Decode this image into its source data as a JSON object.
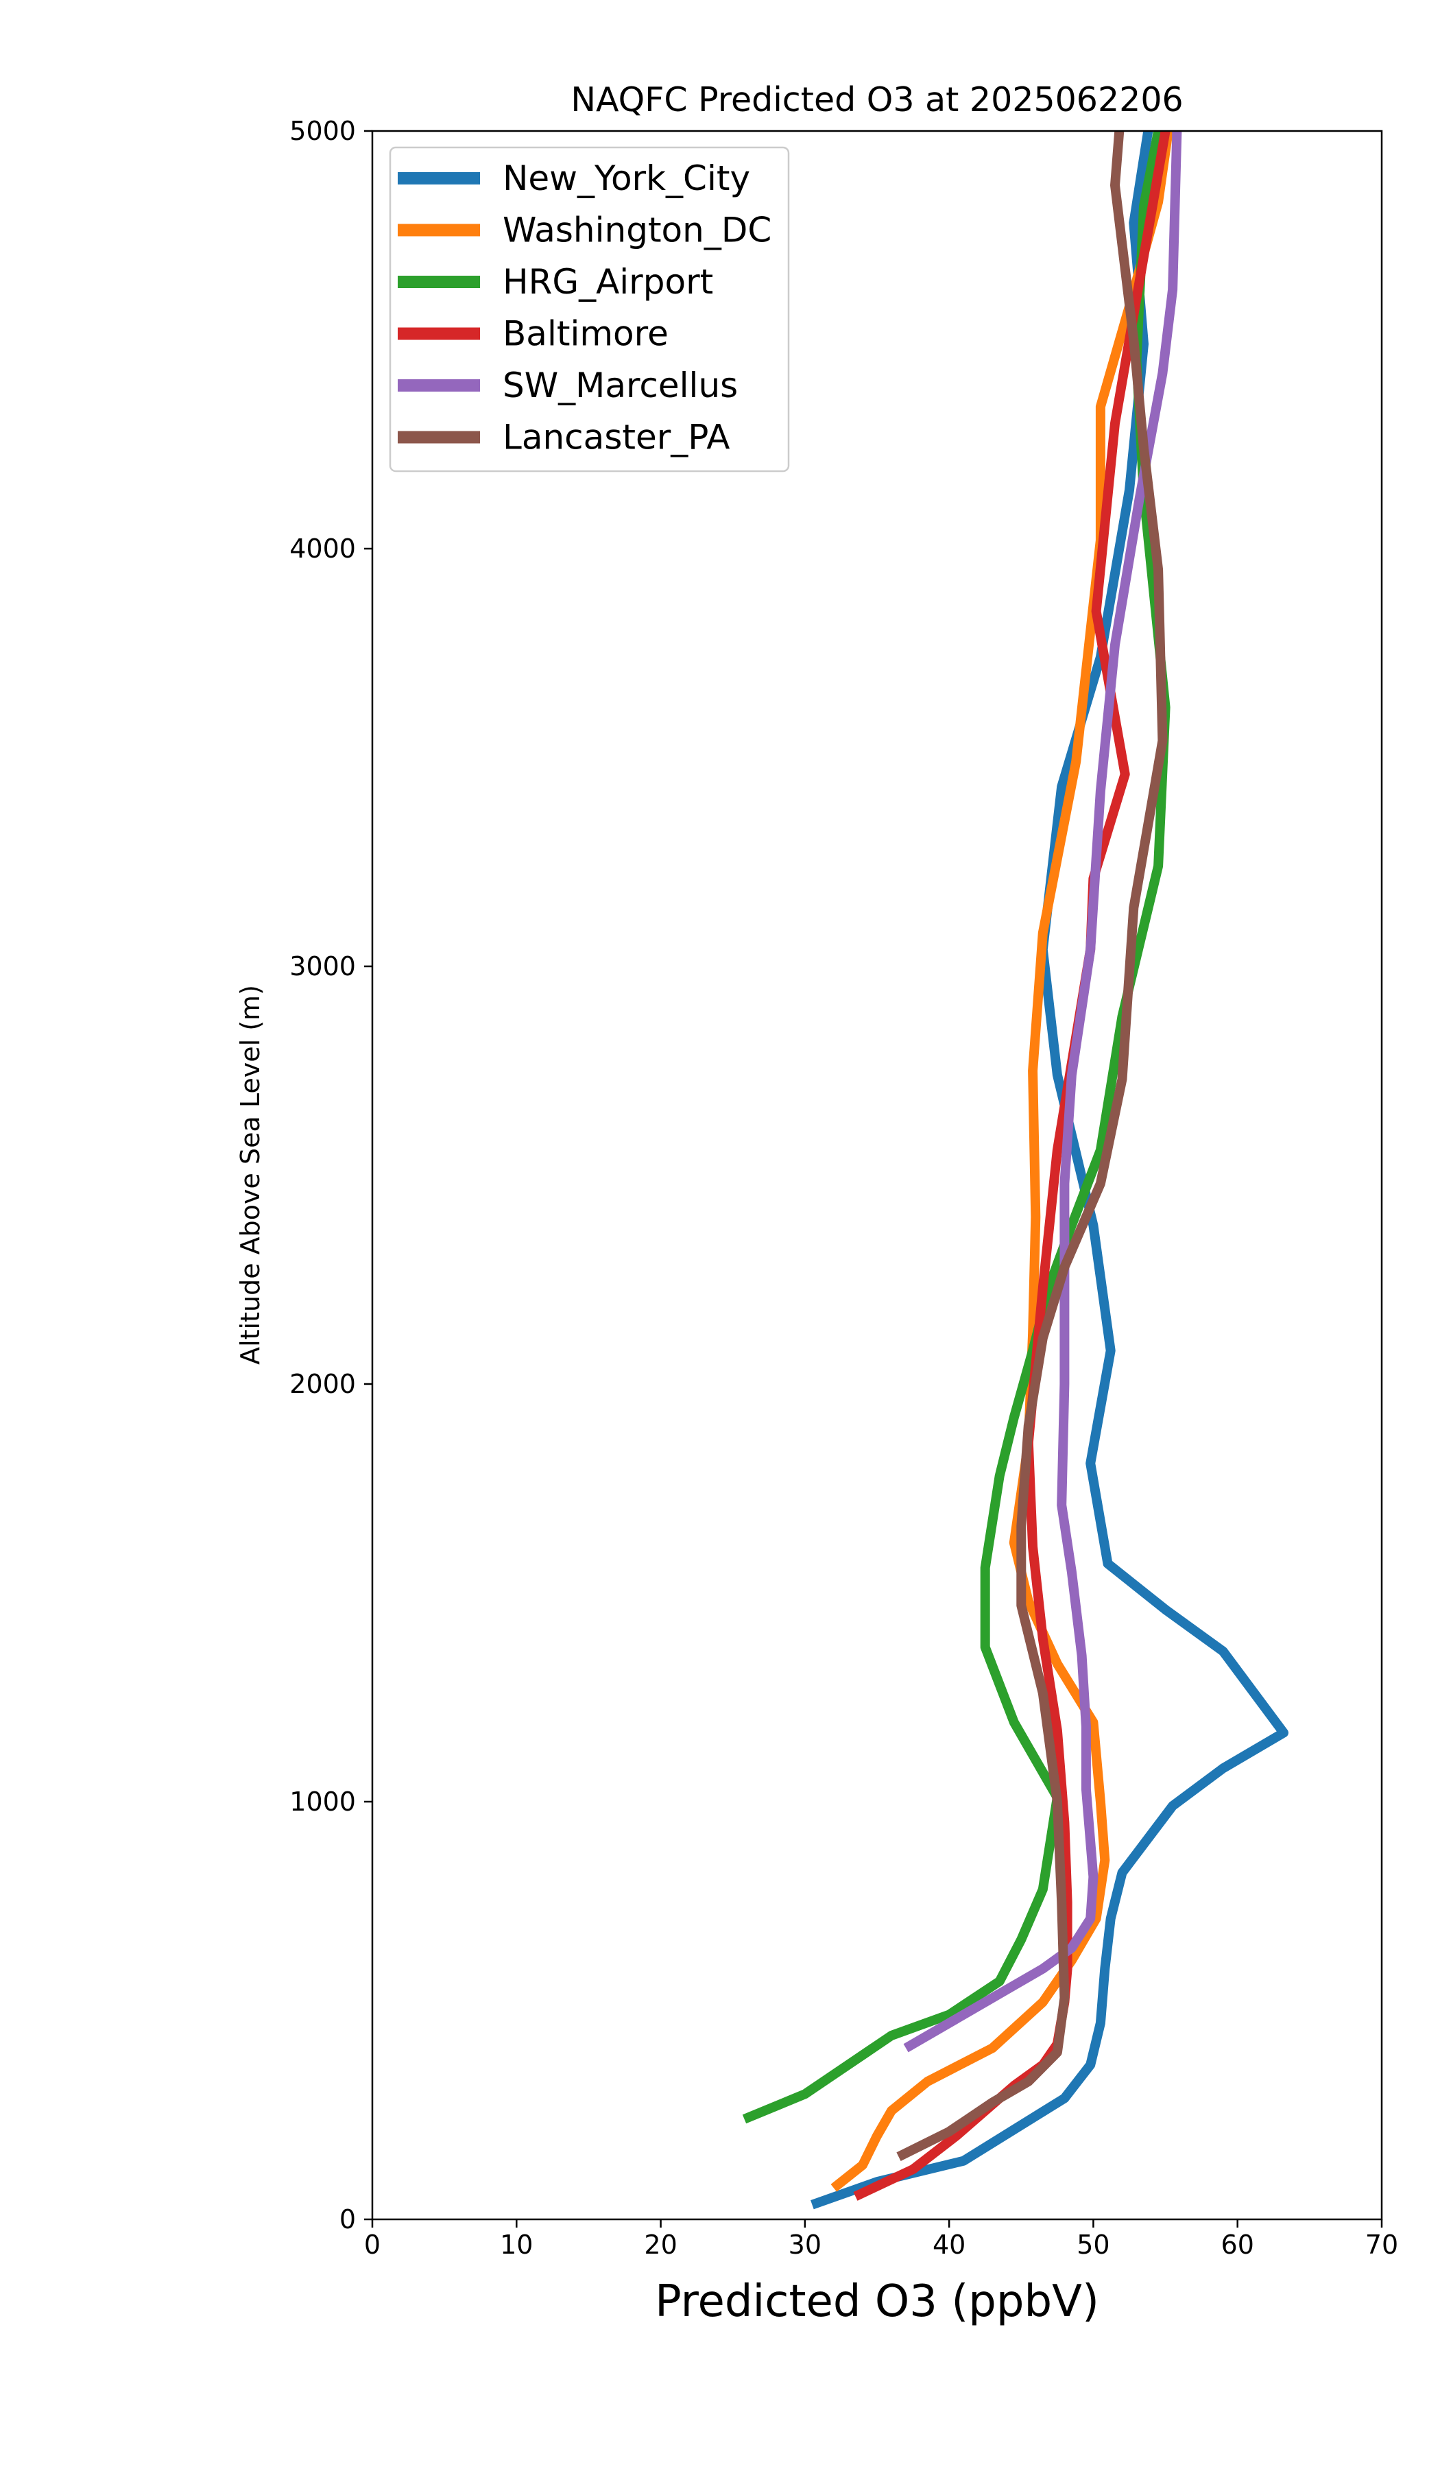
{
  "chart_data": {
    "type": "line",
    "title": "NAQFC Predicted O3 at 2025062206",
    "xlabel": "Predicted O3 (ppbV)",
    "ylabel": "Altitude Above Sea Level (m)",
    "xlim": [
      0,
      70
    ],
    "ylim": [
      0,
      5000
    ],
    "xticks": [
      0,
      10,
      20,
      30,
      40,
      50,
      60,
      70
    ],
    "yticks": [
      0,
      1000,
      2000,
      3000,
      4000,
      5000
    ],
    "xtick_labels": [
      "0",
      "10",
      "20",
      "30",
      "40",
      "50",
      "60",
      "70"
    ],
    "ytick_labels": [
      "0",
      "1000",
      "2000",
      "3000",
      "4000",
      "5000"
    ],
    "grid": false,
    "legend_position": "top-left",
    "series": [
      {
        "name": "New_York_City",
        "color": "#1f77b4",
        "points": [
          [
            30.5,
            35
          ],
          [
            35,
            90
          ],
          [
            41,
            140
          ],
          [
            48,
            290
          ],
          [
            49.8,
            370
          ],
          [
            50.5,
            470
          ],
          [
            50.8,
            600
          ],
          [
            51.2,
            720
          ],
          [
            52,
            830
          ],
          [
            55.5,
            990
          ],
          [
            59,
            1080
          ],
          [
            63.2,
            1165
          ],
          [
            59,
            1360
          ],
          [
            55,
            1460
          ],
          [
            51,
            1570
          ],
          [
            49.8,
            1810
          ],
          [
            51.2,
            2080
          ],
          [
            50,
            2380
          ],
          [
            47.5,
            2740
          ],
          [
            46.5,
            3040
          ],
          [
            47.8,
            3430
          ],
          [
            50.5,
            3740
          ],
          [
            52.5,
            4140
          ],
          [
            53.5,
            4490
          ],
          [
            52.8,
            4780
          ],
          [
            53.8,
            5000
          ]
        ]
      },
      {
        "name": "Washington_DC",
        "color": "#ff7f0e",
        "points": [
          [
            32,
            75
          ],
          [
            34,
            130
          ],
          [
            35,
            200
          ],
          [
            36,
            260
          ],
          [
            38.5,
            330
          ],
          [
            43,
            410
          ],
          [
            46.5,
            520
          ],
          [
            48.5,
            620
          ],
          [
            50.2,
            720
          ],
          [
            50.8,
            860
          ],
          [
            50.5,
            1000
          ],
          [
            50,
            1190
          ],
          [
            47.5,
            1330
          ],
          [
            45.5,
            1480
          ],
          [
            44.5,
            1620
          ],
          [
            45.5,
            1860
          ],
          [
            45.8,
            2120
          ],
          [
            46,
            2400
          ],
          [
            45.8,
            2750
          ],
          [
            46.5,
            3080
          ],
          [
            48.8,
            3490
          ],
          [
            50.5,
            4020
          ],
          [
            50.5,
            4340
          ],
          [
            52.5,
            4580
          ],
          [
            54.5,
            4830
          ],
          [
            55.2,
            5000
          ]
        ]
      },
      {
        "name": "HRG_Airport",
        "color": "#2ca02c",
        "points": [
          [
            25.8,
            240
          ],
          [
            30,
            300
          ],
          [
            33,
            370
          ],
          [
            36,
            440
          ],
          [
            40,
            490
          ],
          [
            43.5,
            570
          ],
          [
            45,
            670
          ],
          [
            46.5,
            790
          ],
          [
            47.5,
            1010
          ],
          [
            44.5,
            1190
          ],
          [
            42.5,
            1370
          ],
          [
            42.5,
            1560
          ],
          [
            43.5,
            1780
          ],
          [
            44.5,
            1920
          ],
          [
            45.8,
            2080
          ],
          [
            47,
            2240
          ],
          [
            48.5,
            2380
          ],
          [
            50.5,
            2560
          ],
          [
            52,
            2880
          ],
          [
            54.5,
            3240
          ],
          [
            55,
            3620
          ],
          [
            53.5,
            4130
          ],
          [
            53,
            4450
          ],
          [
            53.5,
            4820
          ],
          [
            54.5,
            5000
          ]
        ]
      },
      {
        "name": "Baltimore",
        "color": "#d62728",
        "points": [
          [
            33.5,
            55
          ],
          [
            37.5,
            120
          ],
          [
            40.5,
            200
          ],
          [
            42.5,
            260
          ],
          [
            44.5,
            320
          ],
          [
            46.5,
            370
          ],
          [
            47.5,
            420
          ],
          [
            48,
            520
          ],
          [
            48.2,
            600
          ],
          [
            48.2,
            760
          ],
          [
            48,
            950
          ],
          [
            47.5,
            1170
          ],
          [
            46.5,
            1390
          ],
          [
            45.8,
            1610
          ],
          [
            45.5,
            1860
          ],
          [
            46.5,
            2230
          ],
          [
            47.5,
            2560
          ],
          [
            49.8,
            3040
          ],
          [
            50,
            3210
          ],
          [
            52.2,
            3460
          ],
          [
            50.2,
            3850
          ],
          [
            51.5,
            4300
          ],
          [
            53.5,
            4700
          ],
          [
            55,
            5000
          ]
        ]
      },
      {
        "name": "SW_Marcellus",
        "color": "#9467bd",
        "points": [
          [
            37,
            410
          ],
          [
            40,
            470
          ],
          [
            43.5,
            540
          ],
          [
            46.5,
            600
          ],
          [
            48.5,
            650
          ],
          [
            49.8,
            720
          ],
          [
            50,
            820
          ],
          [
            49.5,
            1030
          ],
          [
            49.5,
            1180
          ],
          [
            49.2,
            1350
          ],
          [
            48.5,
            1550
          ],
          [
            47.8,
            1710
          ],
          [
            48,
            2000
          ],
          [
            48,
            2270
          ],
          [
            48,
            2480
          ],
          [
            48.5,
            2740
          ],
          [
            49.8,
            3040
          ],
          [
            50.5,
            3420
          ],
          [
            51.5,
            3770
          ],
          [
            53.2,
            4120
          ],
          [
            54.8,
            4420
          ],
          [
            55.5,
            4620
          ],
          [
            55.8,
            5000
          ]
        ]
      },
      {
        "name": "Lancaster_PA",
        "color": "#8c564b",
        "points": [
          [
            36.5,
            150
          ],
          [
            40,
            210
          ],
          [
            43,
            280
          ],
          [
            45.5,
            330
          ],
          [
            47.5,
            400
          ],
          [
            48,
            530
          ],
          [
            47.8,
            760
          ],
          [
            47.5,
            1000
          ],
          [
            46.5,
            1260
          ],
          [
            45,
            1470
          ],
          [
            45,
            1660
          ],
          [
            45.5,
            1900
          ],
          [
            46.5,
            2110
          ],
          [
            48,
            2280
          ],
          [
            50.5,
            2480
          ],
          [
            52,
            2730
          ],
          [
            52.8,
            3140
          ],
          [
            54.8,
            3540
          ],
          [
            54.5,
            3950
          ],
          [
            53.5,
            4240
          ],
          [
            52.8,
            4500
          ],
          [
            51.5,
            4870
          ],
          [
            51.8,
            5000
          ]
        ]
      }
    ]
  }
}
